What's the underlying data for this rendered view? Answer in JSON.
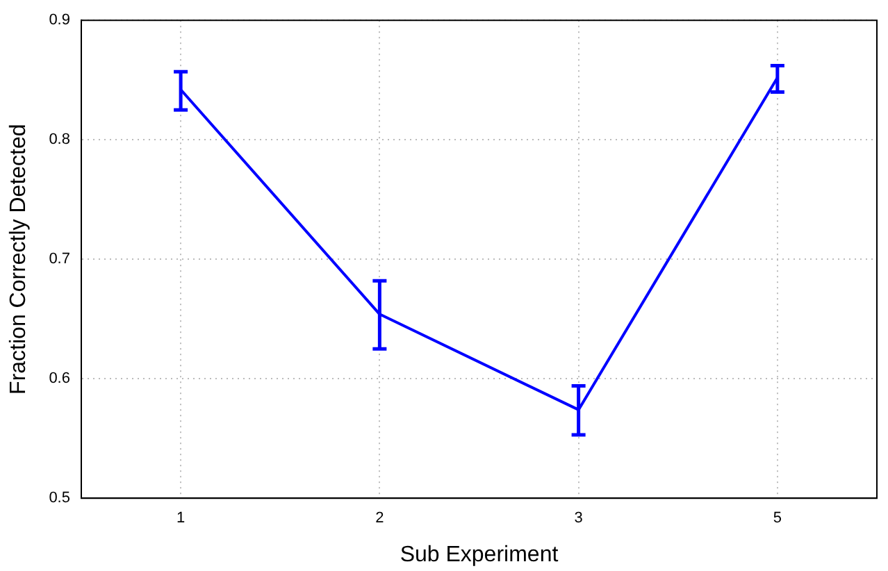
{
  "chart_data": {
    "type": "line",
    "xlabel": "Sub Experiment",
    "ylabel": "Fraction Correctly Detected",
    "categories": [
      "1",
      "2",
      "3",
      "5"
    ],
    "series": [
      {
        "color": "#0000ff",
        "values": [
          0.842,
          0.654,
          0.574,
          0.852
        ],
        "errors": [
          [
            0.825,
            0.857
          ],
          [
            0.625,
            0.682
          ],
          [
            0.553,
            0.594
          ],
          [
            0.84,
            0.862
          ]
        ]
      }
    ],
    "ylim": [
      0.5,
      0.9
    ],
    "yticks": [
      0.5,
      0.6,
      0.7,
      0.8,
      0.9
    ],
    "grid": true,
    "legend": false,
    "marker": "none",
    "line_style": "solid"
  }
}
